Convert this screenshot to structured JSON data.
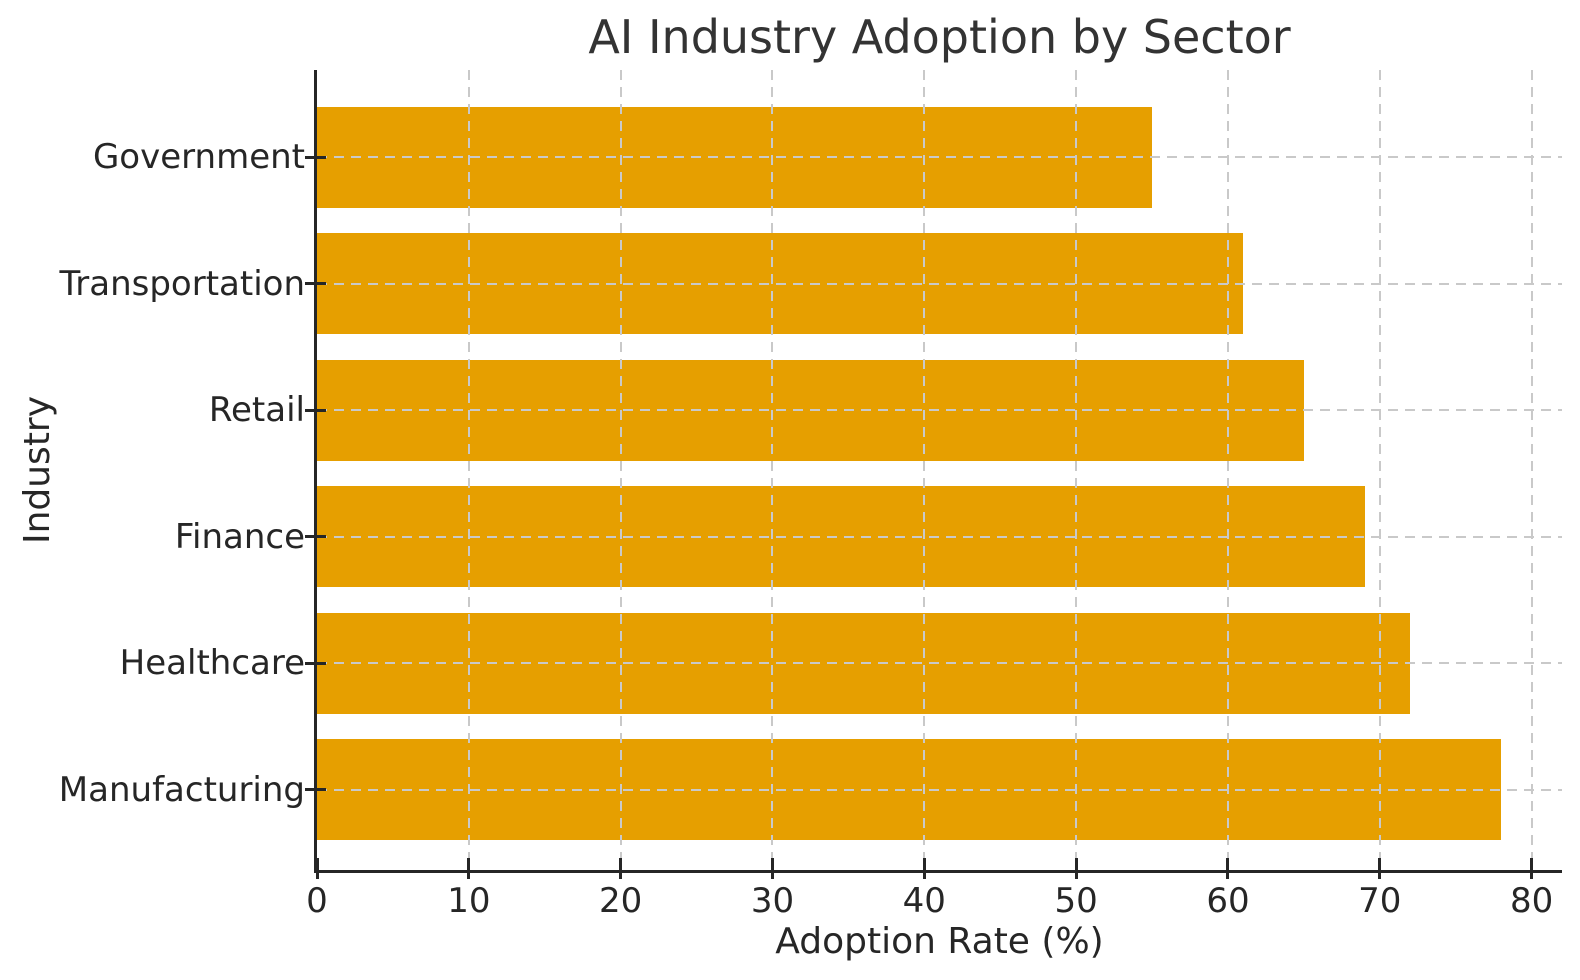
{
  "chart_data": {
    "type": "bar",
    "orientation": "horizontal",
    "title": "AI Industry Adoption by Sector",
    "xlabel": "Adoption Rate (%)",
    "ylabel": "Industry",
    "categories_order": "top-to-bottom",
    "categories": [
      "Government",
      "Transportation",
      "Retail",
      "Finance",
      "Healthcare",
      "Manufacturing"
    ],
    "values": [
      55,
      61,
      65,
      69,
      72,
      78
    ],
    "xticks": [
      0,
      10,
      20,
      30,
      40,
      50,
      60,
      70,
      80
    ],
    "xlim": [
      0,
      82
    ],
    "grid": true,
    "grid_style": "dashed",
    "legend": "none",
    "colors": {
      "bar": "#E69F00",
      "grid": "#c9c9c9",
      "spine": "#262626",
      "text": "#262626",
      "background": "#ffffff"
    }
  }
}
